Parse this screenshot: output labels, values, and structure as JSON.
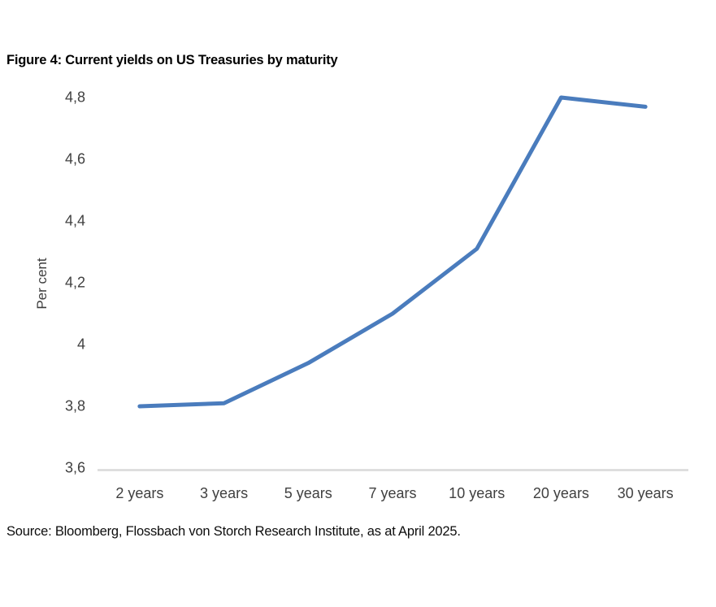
{
  "title": "Figure 4: Current yields on US Treasuries by maturity",
  "source": "Source: Bloomberg, Flossbach von Storch Research Institute, as at April 2025.",
  "chart_data": {
    "type": "line",
    "title": "Figure 4: Current yields on US Treasuries by maturity",
    "categories": [
      "2 years",
      "3 years",
      "5 years",
      "7 years",
      "10 years",
      "20 years",
      "30 years"
    ],
    "values": [
      3.8,
      3.81,
      3.94,
      4.1,
      4.31,
      4.8,
      4.77
    ],
    "xlabel": "",
    "ylabel": "Per cent",
    "ylim": [
      3.6,
      4.8
    ],
    "ytick_values": [
      4.8,
      4.6,
      4.4,
      4.2,
      4.0,
      3.8,
      3.6
    ],
    "ytick_labels": [
      "4,8",
      "4,6",
      "4,4",
      "4,2",
      "4",
      "3,8",
      "3,6"
    ],
    "decimal_separator": ",",
    "grid": false,
    "legend": false,
    "line_color": "#4A7CBD",
    "axis_color": "#D9D9D9",
    "tick_text_color": "#404040"
  }
}
